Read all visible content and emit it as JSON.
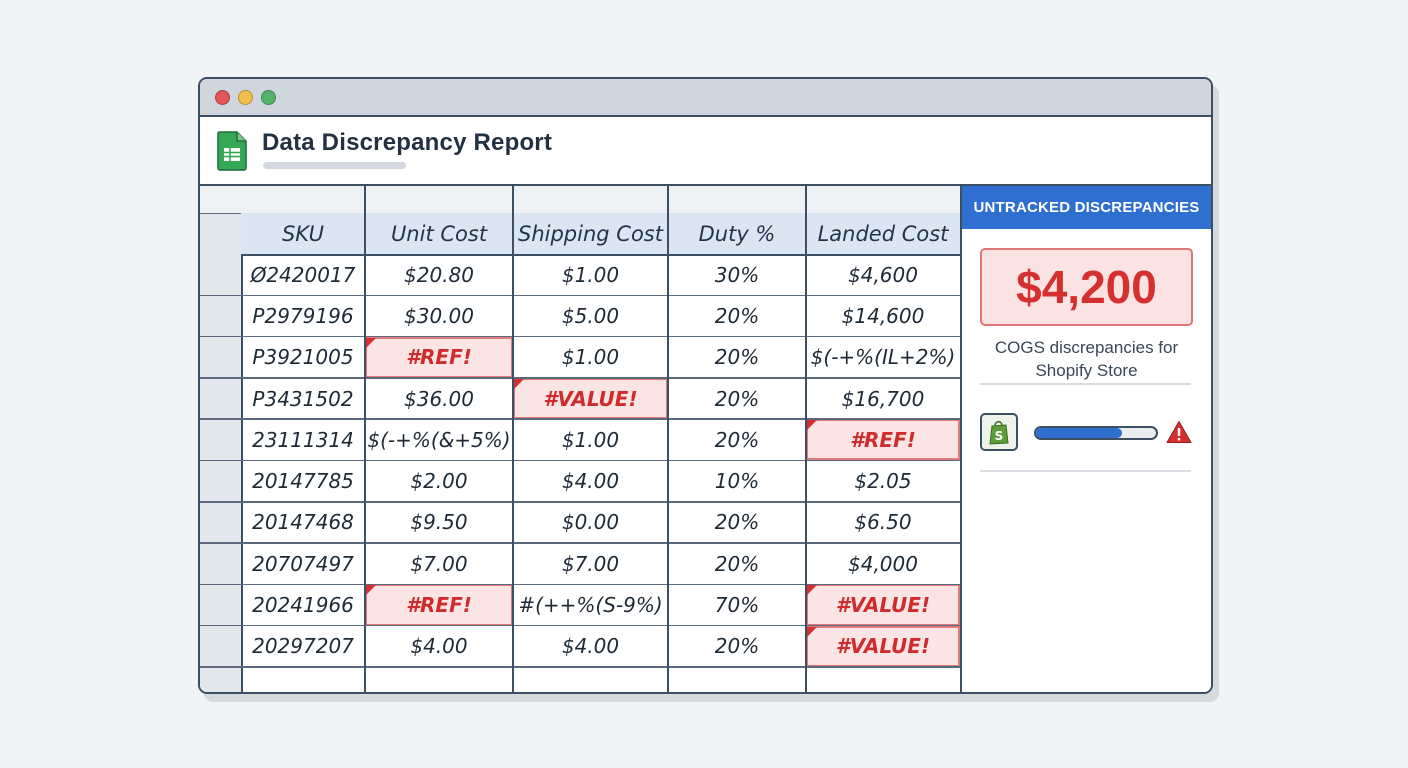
{
  "report": {
    "title": "Data Discrepancy Report"
  },
  "table": {
    "headers": [
      "SKU",
      "Unit Cost",
      "Shipping Cost",
      "Duty %",
      "Landed Cost"
    ],
    "rows": [
      [
        "Ø2420017",
        "$20.80",
        "$1.00",
        "30%",
        "$4,600"
      ],
      [
        "P2979196",
        "$30.00",
        "$5.00",
        "20%",
        "$14,600"
      ],
      [
        "P3921005",
        "#REF!",
        "$1.00",
        "20%",
        "$(-+%(IL+2%)"
      ],
      [
        "P3431502",
        "$36.00",
        "#VALUE!",
        "20%",
        "$16,700"
      ],
      [
        "23111314",
        "$(-+%(&+5%)",
        "$1.00",
        "20%",
        "#REF!"
      ],
      [
        "20147785",
        "$2.00",
        "$4.00",
        "10%",
        "$2.05"
      ],
      [
        "20147468",
        "$9.50",
        "$0.00",
        "20%",
        "$6.50"
      ],
      [
        "20707497",
        "$7.00",
        "$7.00",
        "20%",
        "$4,000"
      ],
      [
        "20241966",
        "#REF!",
        "#(++%(S-9%)",
        "70%",
        "#VALUE!"
      ],
      [
        "20297207",
        "$4.00",
        "$4.00",
        "20%",
        "#VALUE!"
      ]
    ],
    "error_cells": [
      [
        2,
        1
      ],
      [
        3,
        2
      ],
      [
        4,
        4
      ],
      [
        8,
        1
      ],
      [
        8,
        4
      ],
      [
        9,
        4
      ]
    ]
  },
  "panel": {
    "heading": "UNTRACKED DISCREPANCIES",
    "amount": "$4,200",
    "description_line1": "COGS discrepancies for",
    "description_line2": "Shopify Store",
    "progress": 0.72,
    "icons": [
      "shopify-icon",
      "warning-icon",
      "sheets-icon"
    ]
  },
  "colors": {
    "accent": "#2f6fcf",
    "error": "#d62f2f",
    "error_bg": "#fbe4e4",
    "header_bg": "#dbe6f2"
  }
}
